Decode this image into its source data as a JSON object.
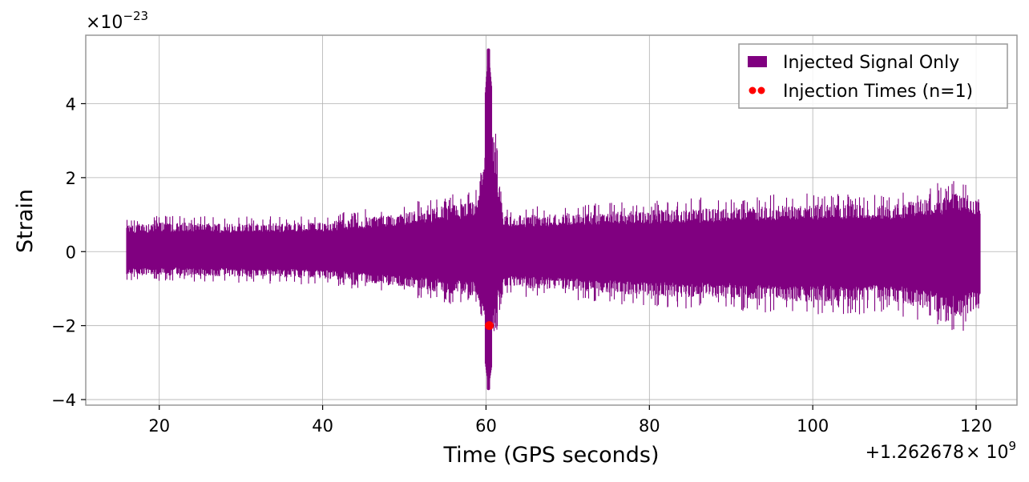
{
  "chart_data": {
    "type": "line",
    "title": "",
    "xlabel": "Time (GPS seconds)",
    "ylabel": "Strain",
    "x_offset_label": "+1.262678",
    "x_offset_times": "× 10",
    "x_offset_exp": "9",
    "y_scale_base": "×10",
    "y_scale_exp": "−23",
    "xlim": [
      11,
      125
    ],
    "ylim": [
      -4.15,
      5.85
    ],
    "xticks": [
      20,
      40,
      60,
      80,
      100,
      120
    ],
    "xtick_labels": [
      "20",
      "40",
      "60",
      "80",
      "100",
      "120"
    ],
    "yticks": [
      -4,
      -2,
      0,
      2,
      4
    ],
    "ytick_labels": [
      "−4",
      "−2",
      "0",
      "2",
      "4"
    ],
    "grid": true,
    "legend_position": "top-right",
    "series": [
      {
        "name": "Injected Signal Only",
        "color": "#800080",
        "t_start": 16.0,
        "t_end": 120.5,
        "envelope": [
          {
            "x": 16,
            "upper": 0.9,
            "lower": -0.8
          },
          {
            "x": 20,
            "upper": 1.0,
            "lower": -0.8
          },
          {
            "x": 30,
            "upper": 0.95,
            "lower": -0.85
          },
          {
            "x": 40,
            "upper": 1.0,
            "lower": -0.9
          },
          {
            "x": 50,
            "upper": 1.3,
            "lower": -1.2
          },
          {
            "x": 55,
            "upper": 1.55,
            "lower": -1.4
          },
          {
            "x": 59,
            "upper": 1.7,
            "lower": -1.5
          },
          {
            "x": 60.3,
            "upper": 5.45,
            "lower": -3.7
          },
          {
            "x": 62,
            "upper": 1.2,
            "lower": -1.2
          },
          {
            "x": 70,
            "upper": 1.3,
            "lower": -1.3
          },
          {
            "x": 80,
            "upper": 1.4,
            "lower": -1.5
          },
          {
            "x": 90,
            "upper": 1.5,
            "lower": -1.6
          },
          {
            "x": 100,
            "upper": 1.6,
            "lower": -1.7
          },
          {
            "x": 110,
            "upper": 1.6,
            "lower": -1.7
          },
          {
            "x": 118,
            "upper": 2.0,
            "lower": -2.2
          },
          {
            "x": 120.5,
            "upper": 1.8,
            "lower": -1.9
          }
        ]
      },
      {
        "name": "Injection Times (n=1)",
        "color": "#ff0000",
        "points": [
          {
            "x": 60.4,
            "y": -2.0
          }
        ]
      }
    ]
  }
}
